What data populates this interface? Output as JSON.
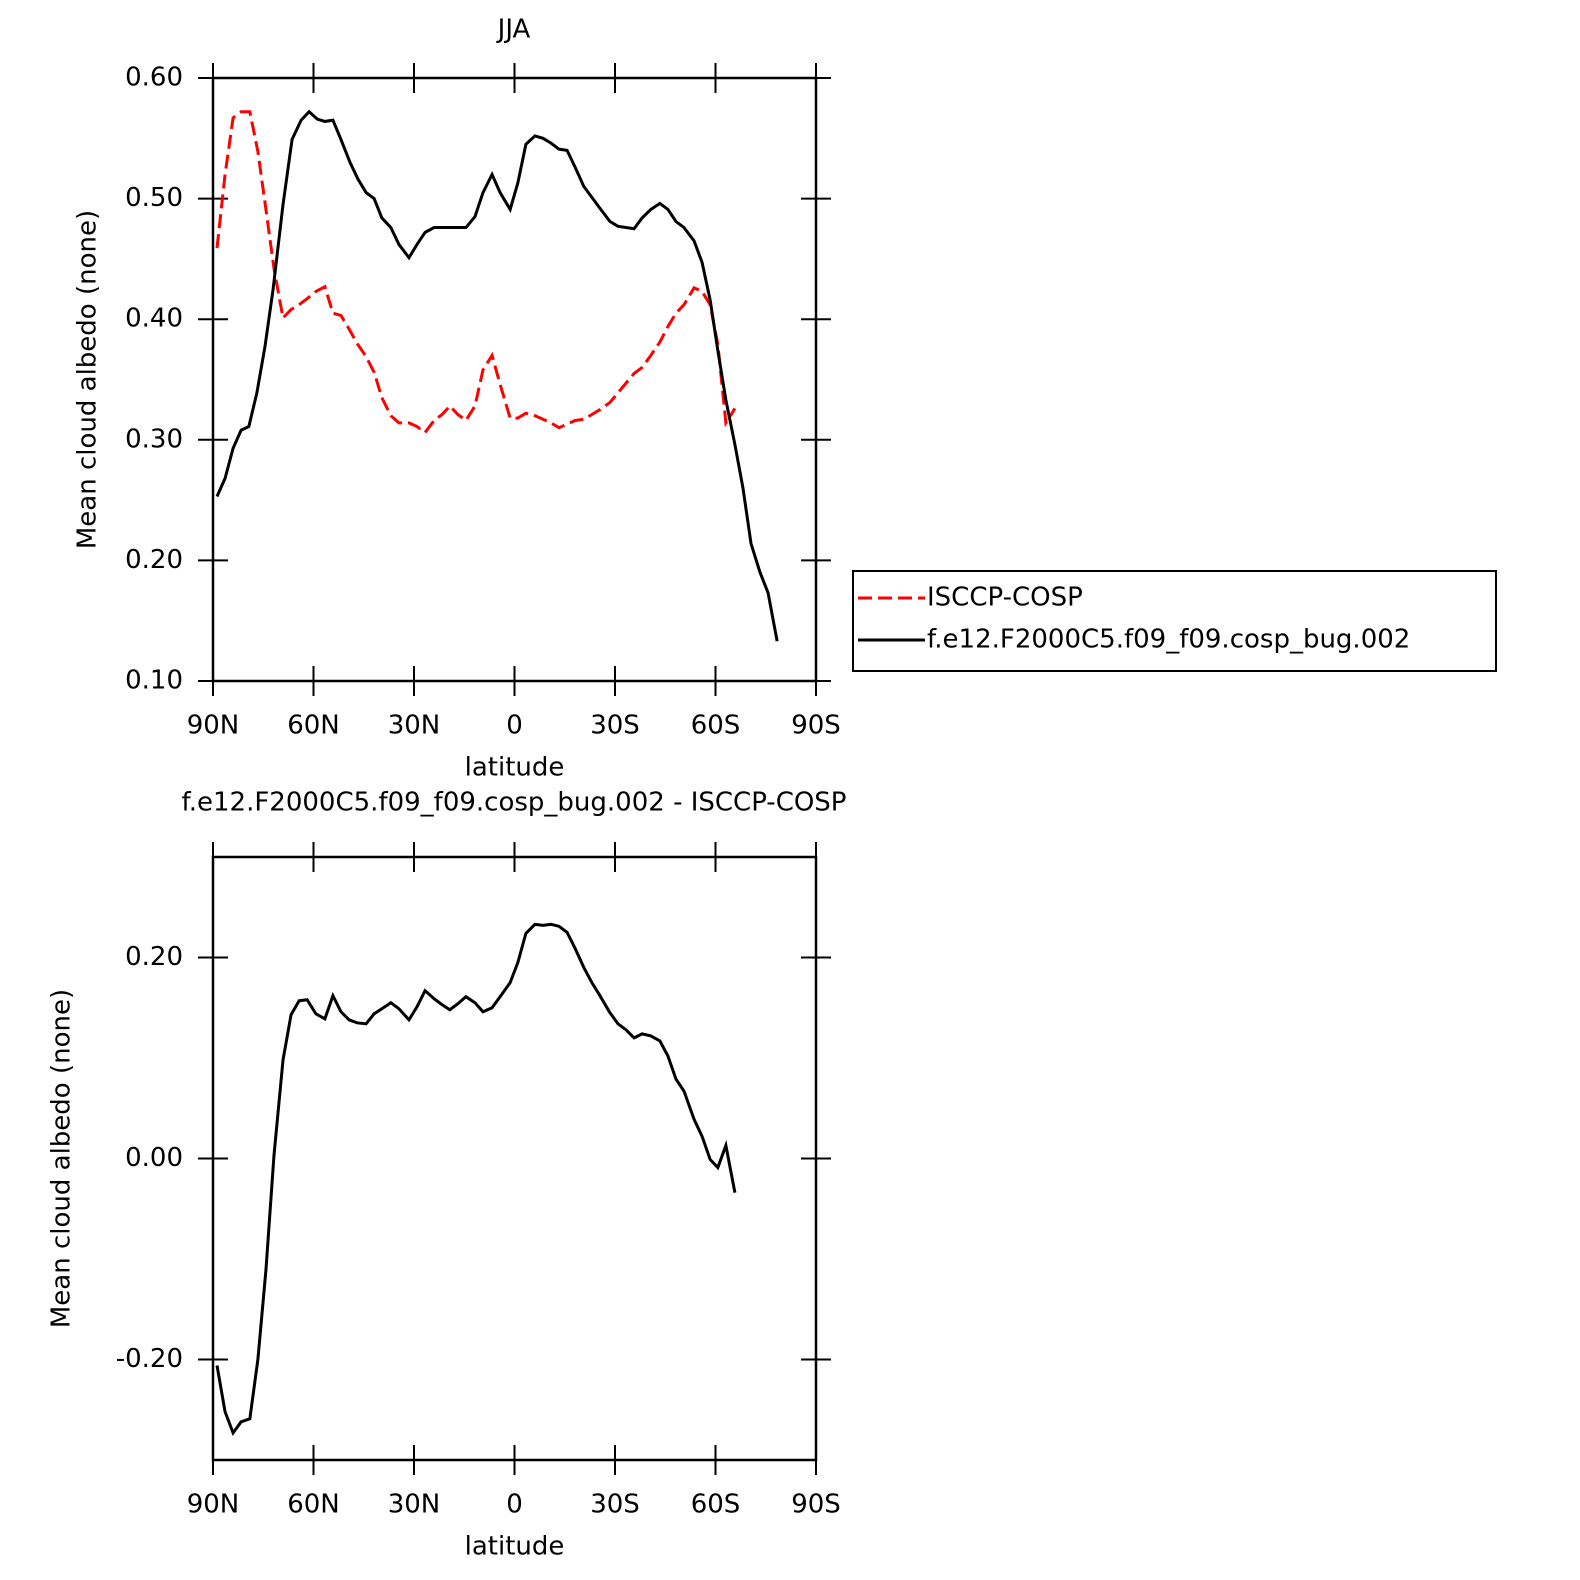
{
  "chart_data": [
    {
      "type": "line",
      "title": "JJA",
      "xlabel": "latitude",
      "ylabel": "Mean cloud albedo (none)",
      "xlim": [
        90,
        -90
      ],
      "xticks": [
        {
          "value": 90,
          "label": "90N"
        },
        {
          "value": 60,
          "label": "60N"
        },
        {
          "value": 30,
          "label": "30N"
        },
        0,
        {
          "value": -30,
          "label": "30S"
        },
        {
          "value": -60,
          "label": "60S"
        },
        {
          "value": -90,
          "label": "90S"
        }
      ],
      "ylim": [
        0.1,
        0.6
      ],
      "yticks": [
        {
          "value": 0.1,
          "label": "0.10"
        },
        {
          "value": 0.2,
          "label": "0.20"
        },
        {
          "value": 0.3,
          "label": "0.30"
        },
        {
          "value": 0.4,
          "label": "0.40"
        },
        {
          "value": 0.5,
          "label": "0.50"
        },
        {
          "value": 0.6,
          "label": "0.60"
        }
      ],
      "legend": "right",
      "series": [
        {
          "name": "ISCCP-COSP",
          "color": "#ff0000",
          "linestyle": "dashed",
          "x": [
            88.8,
            86.4,
            84,
            81.6,
            79.0,
            76.6,
            74.2,
            71.8,
            69.1,
            66.7,
            64.3,
            61.9,
            59.3,
            56.6,
            54.2,
            51.8,
            49.4,
            47.0,
            44.3,
            41.9,
            39.6,
            36.9,
            34.5,
            31.5,
            29.1,
            26.7,
            24.0,
            21.6,
            19.3,
            16.9,
            14.5,
            11.8,
            9.4,
            6.7,
            4.3,
            1.3,
            -1.0,
            -3.4,
            -6.1,
            -8.5,
            -10.9,
            -13.3,
            -15.7,
            -18.1,
            -20.7,
            -23.1,
            -25.5,
            -28.5,
            -30.9,
            -33.3,
            -35.7,
            -38.1,
            -40.7,
            -43.4,
            -45.8,
            -48.2,
            -50.6,
            -53.6,
            -56.0,
            -58.4,
            -60.7,
            -63.1,
            -65.8
          ],
          "values": [
            0.459,
            0.52,
            0.567,
            0.572,
            0.572,
            0.539,
            0.491,
            0.442,
            0.401,
            0.408,
            0.412,
            0.417,
            0.423,
            0.427,
            0.405,
            0.403,
            0.392,
            0.38,
            0.369,
            0.356,
            0.335,
            0.32,
            0.314,
            0.314,
            0.311,
            0.306,
            0.316,
            0.321,
            0.328,
            0.321,
            0.316,
            0.328,
            0.358,
            0.37,
            0.346,
            0.318,
            0.318,
            0.322,
            0.32,
            0.317,
            0.314,
            0.31,
            0.313,
            0.316,
            0.317,
            0.321,
            0.325,
            0.331,
            0.339,
            0.347,
            0.355,
            0.36,
            0.37,
            0.381,
            0.394,
            0.405,
            0.412,
            0.426,
            0.423,
            0.412,
            0.379,
            0.314,
            0.326
          ]
        },
        {
          "name": "f.e12.F2000C5.f09_f09.cosp_bug.002",
          "color": "#000000",
          "linestyle": "solid",
          "x": [
            88.8,
            86.4,
            84,
            81.6,
            79.3,
            76.9,
            74.5,
            72.1,
            69.1,
            66.4,
            63.7,
            61.3,
            58.9,
            56.6,
            54.2,
            51.8,
            49.1,
            46.7,
            44.3,
            41.9,
            39.6,
            36.9,
            34.5,
            31.5,
            29.1,
            26.7,
            24.0,
            21.6,
            19.3,
            16.9,
            14.5,
            11.8,
            9.4,
            6.7,
            4.3,
            1.3,
            -1.0,
            -3.4,
            -6.1,
            -8.5,
            -10.9,
            -13.3,
            -15.7,
            -18.1,
            -20.7,
            -23.1,
            -25.5,
            -28.5,
            -30.9,
            -33.3,
            -35.7,
            -38.1,
            -40.7,
            -43.4,
            -45.8,
            -48.2,
            -50.6,
            -53.6,
            -56.0,
            -58.4,
            -60.7,
            -63.1,
            -65.8,
            -68.2,
            -70.6,
            -73.3,
            -75.7,
            -78.4
          ],
          "values": [
            0.253,
            0.268,
            0.293,
            0.308,
            0.311,
            0.339,
            0.377,
            0.424,
            0.495,
            0.549,
            0.565,
            0.572,
            0.566,
            0.564,
            0.565,
            0.549,
            0.53,
            0.516,
            0.505,
            0.5,
            0.484,
            0.476,
            0.462,
            0.451,
            0.462,
            0.472,
            0.476,
            0.476,
            0.476,
            0.476,
            0.476,
            0.485,
            0.505,
            0.52,
            0.505,
            0.491,
            0.513,
            0.545,
            0.552,
            0.55,
            0.546,
            0.541,
            0.54,
            0.526,
            0.51,
            0.501,
            0.492,
            0.481,
            0.477,
            0.476,
            0.475,
            0.484,
            0.491,
            0.496,
            0.491,
            0.481,
            0.476,
            0.465,
            0.447,
            0.416,
            0.374,
            0.333,
            0.296,
            0.26,
            0.214,
            0.19,
            0.173,
            0.133
          ]
        }
      ]
    },
    {
      "type": "line",
      "title": "f.e12.F2000C5.f09_f09.cosp_bug.002 - ISCCP-COSP",
      "xlabel": "latitude",
      "ylabel": "Mean cloud albedo (none)",
      "xlim": [
        90,
        -90
      ],
      "xticks": [
        {
          "value": 90,
          "label": "90N"
        },
        {
          "value": 60,
          "label": "60N"
        },
        {
          "value": 30,
          "label": "30N"
        },
        0,
        {
          "value": -30,
          "label": "30S"
        },
        {
          "value": -60,
          "label": "60S"
        },
        {
          "value": -90,
          "label": "90S"
        }
      ],
      "ylim": [
        -0.3,
        0.3
      ],
      "yticks": [
        {
          "value": -0.2,
          "label": "-0.20"
        },
        {
          "value": 0,
          "label": "0.00"
        },
        {
          "value": 0.2,
          "label": "0.20"
        }
      ],
      "color": "#000000",
      "x": [
        88.8,
        86.4,
        84,
        81.6,
        79.0,
        76.6,
        74.2,
        71.8,
        69.1,
        66.7,
        64.3,
        61.9,
        59.3,
        56.6,
        54.2,
        51.8,
        49.4,
        47.0,
        44.3,
        41.9,
        39.6,
        36.9,
        34.5,
        31.5,
        29.1,
        26.7,
        24.0,
        21.6,
        19.3,
        16.9,
        14.5,
        11.8,
        9.4,
        6.7,
        4.3,
        1.3,
        -1.0,
        -3.4,
        -6.1,
        -8.5,
        -10.9,
        -13.3,
        -15.7,
        -18.1,
        -20.7,
        -23.1,
        -25.5,
        -28.5,
        -30.9,
        -33.3,
        -35.7,
        -38.1,
        -40.7,
        -43.4,
        -45.8,
        -48.2,
        -50.6,
        -53.6,
        -56.0,
        -58.4,
        -60.7,
        -63.1,
        -65.8
      ],
      "values": [
        -0.206,
        -0.252,
        -0.273,
        -0.262,
        -0.259,
        -0.2,
        -0.111,
        0.003,
        0.098,
        0.143,
        0.157,
        0.158,
        0.144,
        0.139,
        0.162,
        0.146,
        0.138,
        0.135,
        0.134,
        0.144,
        0.149,
        0.155,
        0.149,
        0.138,
        0.151,
        0.167,
        0.159,
        0.153,
        0.148,
        0.154,
        0.161,
        0.155,
        0.146,
        0.15,
        0.161,
        0.175,
        0.195,
        0.224,
        0.233,
        0.232,
        0.233,
        0.231,
        0.225,
        0.209,
        0.19,
        0.175,
        0.162,
        0.145,
        0.134,
        0.128,
        0.12,
        0.124,
        0.122,
        0.117,
        0.102,
        0.079,
        0.067,
        0.039,
        0.022,
        -0.001,
        -0.009,
        0.013,
        -0.034
      ]
    }
  ]
}
